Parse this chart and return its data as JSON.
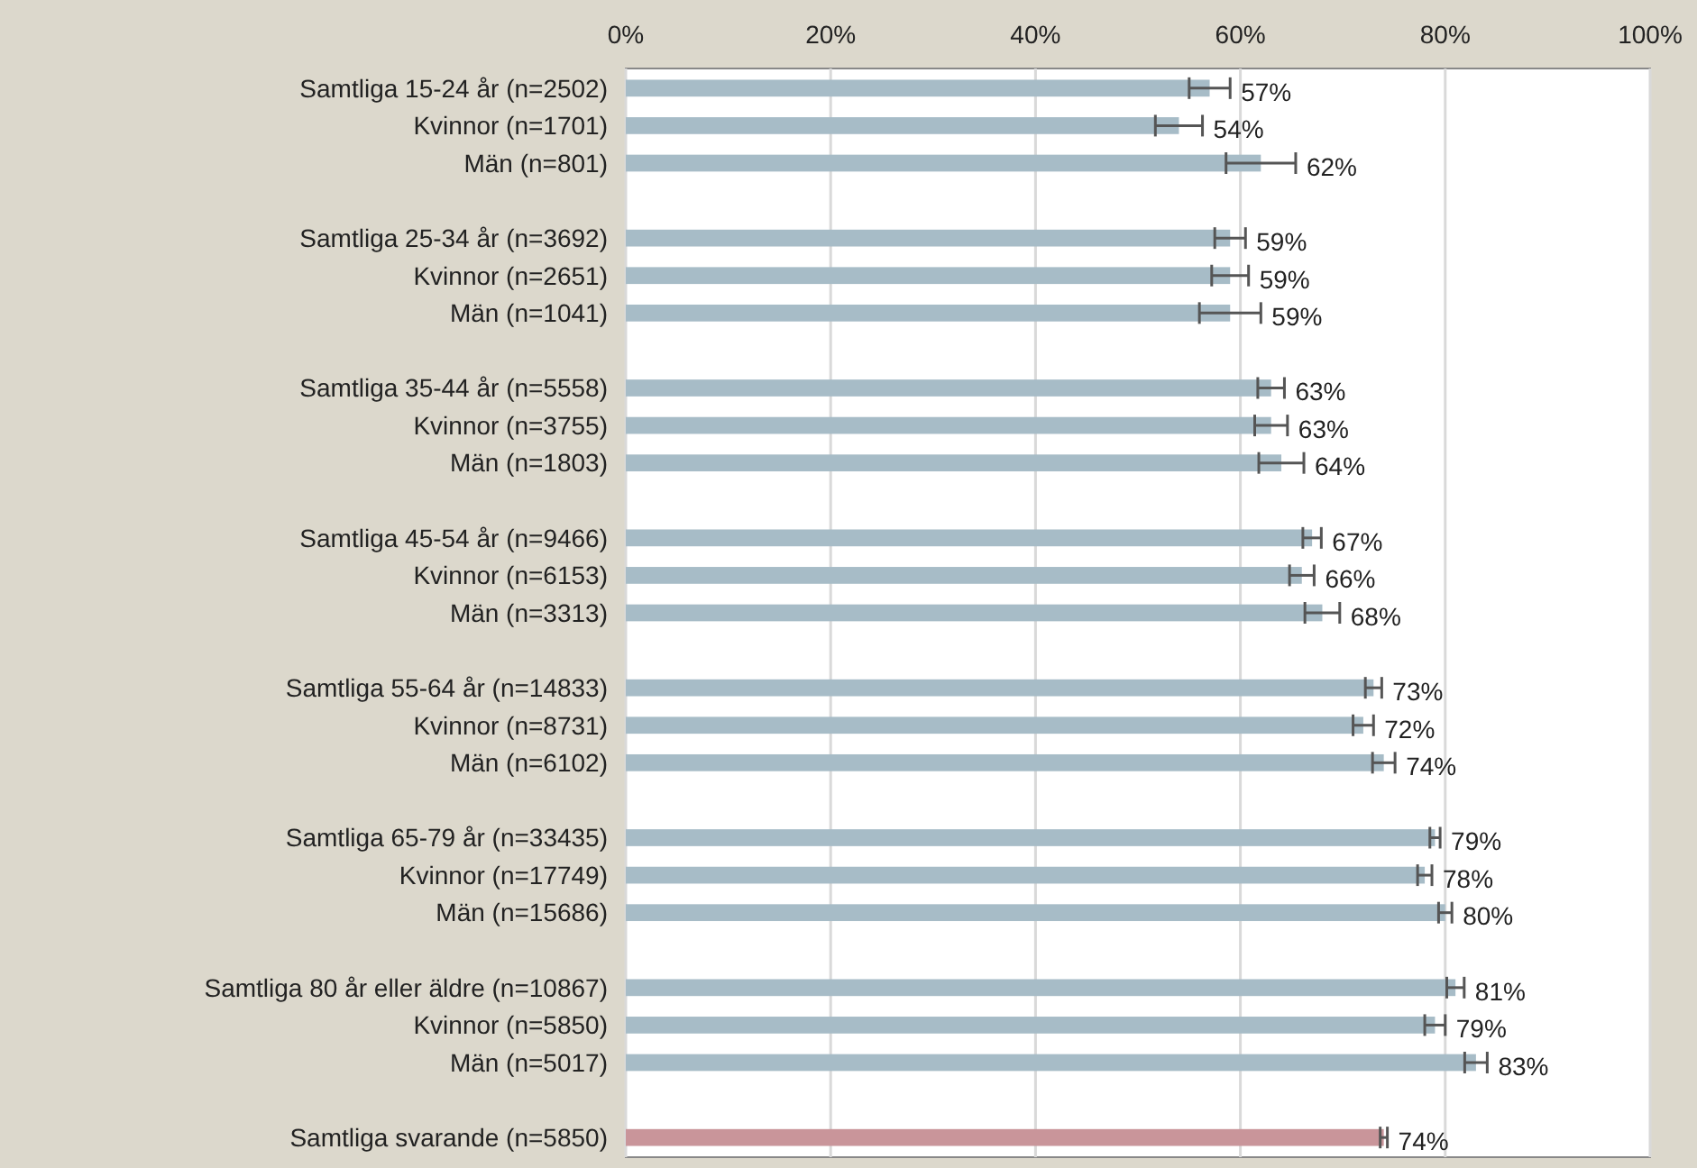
{
  "chart_data": {
    "type": "bar",
    "orientation": "horizontal",
    "categories": [
      "Samtliga 15-24 år (n=2502)",
      "Kvinnor (n=1701)",
      "Män (n=801)",
      null,
      "Samtliga 25-34 år (n=3692)",
      "Kvinnor (n=2651)",
      "Män (n=1041)",
      null,
      "Samtliga 35-44 år (n=5558)",
      "Kvinnor (n=3755)",
      "Män (n=1803)",
      null,
      "Samtliga 45-54 år (n=9466)",
      "Kvinnor (n=6153)",
      "Män (n=3313)",
      null,
      "Samtliga 55-64 år (n=14833)",
      "Kvinnor (n=8731)",
      "Män (n=6102)",
      null,
      "Samtliga 65-79 år (n=33435)",
      "Kvinnor (n=17749)",
      "Män (n=15686)",
      null,
      "Samtliga 80 år eller äldre (n=10867)",
      "Kvinnor (n=5850)",
      "Män (n=5017)",
      null,
      "Samtliga svarande (n=5850)"
    ],
    "values": [
      57,
      54,
      62,
      null,
      59,
      59,
      59,
      null,
      63,
      63,
      64,
      null,
      67,
      66,
      68,
      null,
      73,
      72,
      74,
      null,
      79,
      78,
      80,
      null,
      81,
      79,
      83,
      null,
      74
    ],
    "errors": [
      2,
      2.3,
      3.4,
      null,
      1.5,
      1.8,
      3,
      null,
      1.3,
      1.6,
      2.2,
      null,
      0.9,
      1.2,
      1.7,
      null,
      0.8,
      1,
      1.1,
      null,
      0.5,
      0.7,
      0.65,
      null,
      0.85,
      1,
      1.1,
      null,
      0.35
    ],
    "value_labels": [
      "57%",
      "54%",
      "62%",
      null,
      "59%",
      "59%",
      "59%",
      null,
      "63%",
      "63%",
      "64%",
      null,
      "67%",
      "66%",
      "68%",
      null,
      "73%",
      "72%",
      "74%",
      null,
      "79%",
      "78%",
      "80%",
      null,
      "81%",
      "79%",
      "83%",
      null,
      "74%"
    ],
    "colors": [
      "#a7bcc7",
      "#a7bcc7",
      "#a7bcc7",
      null,
      "#a7bcc7",
      "#a7bcc7",
      "#a7bcc7",
      null,
      "#a7bcc7",
      "#a7bcc7",
      "#a7bcc7",
      null,
      "#a7bcc7",
      "#a7bcc7",
      "#a7bcc7",
      null,
      "#a7bcc7",
      "#a7bcc7",
      "#a7bcc7",
      null,
      "#a7bcc7",
      "#a7bcc7",
      "#a7bcc7",
      null,
      "#a7bcc7",
      "#a7bcc7",
      "#a7bcc7",
      null,
      "#c9959a"
    ],
    "xlim": [
      0,
      100
    ],
    "xticks": [
      {
        "value": 0,
        "label": "0%"
      },
      {
        "value": 20,
        "label": "20%"
      },
      {
        "value": 40,
        "label": "40%"
      },
      {
        "value": 60,
        "label": "60%"
      },
      {
        "value": 80,
        "label": "80%"
      },
      {
        "value": 100,
        "label": "100%"
      }
    ],
    "grid": "x"
  }
}
